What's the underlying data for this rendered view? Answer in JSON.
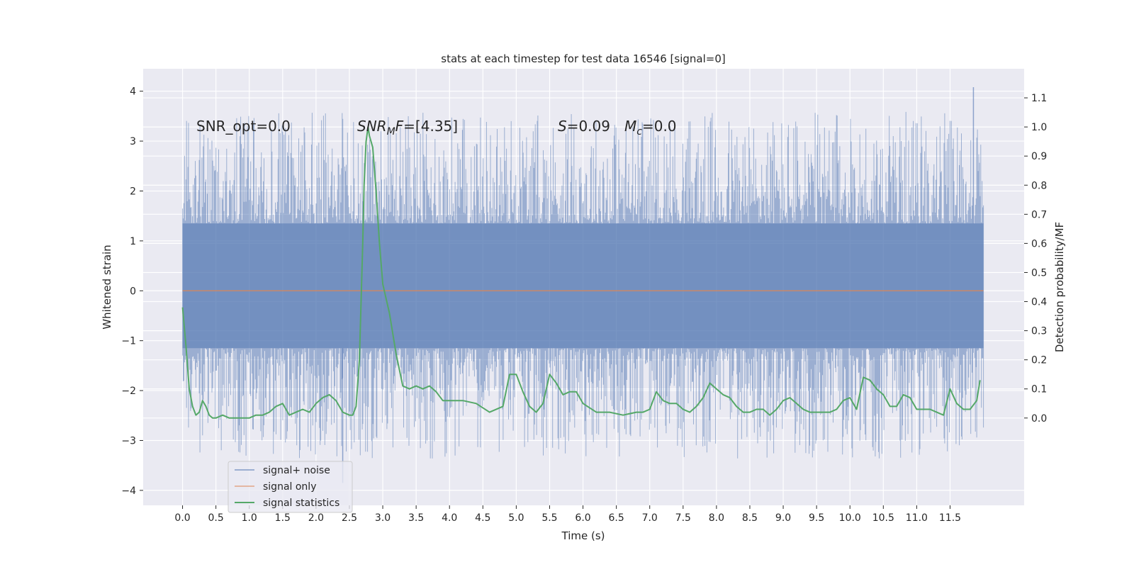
{
  "chart_data": {
    "type": "line",
    "title": "stats at each timestep for test data 16546 [signal=0]",
    "xlabel": "Time (s)",
    "ylabel": "Whitened strain",
    "ylabel_right": "Detection probability/MF",
    "x_ticks": [
      "0.0",
      "0.5",
      "1.0",
      "1.5",
      "2.0",
      "2.5",
      "3.0",
      "3.5",
      "4.0",
      "4.5",
      "5.0",
      "5.5",
      "6.0",
      "6.5",
      "7.0",
      "7.5",
      "8.0",
      "8.5",
      "9.0",
      "9.5",
      "10.0",
      "10.5",
      "11.0",
      "11.5"
    ],
    "y_ticks": [
      "4",
      "3",
      "2",
      "1",
      "0",
      "−1",
      "−2",
      "−3",
      "−4"
    ],
    "y_ticks_right": [
      "1.1",
      "1.0",
      "0.9",
      "0.8",
      "0.7",
      "0.6",
      "0.5",
      "0.4",
      "0.3",
      "0.2",
      "0.1",
      "0.0"
    ],
    "xlim": [
      -0.59,
      12.61
    ],
    "ylim": [
      -4.3,
      4.45
    ],
    "ylim_right": [
      -0.3,
      1.2
    ],
    "grid": true,
    "legend_position": "lower-left",
    "annotations": {
      "snr_opt": "SNR_opt=0.0",
      "snr_mf_pre": "SNR",
      "snr_mf_sub": "M",
      "snr_mf_post": "F=[4.35]",
      "s_var": "S",
      "s_val": "=0.09",
      "mc_var": "M",
      "mc_sub": "c",
      "mc_val": "=0.0"
    },
    "series": [
      {
        "name": "signal+ noise",
        "color": "#4c72b0",
        "axis": "left",
        "kind": "noise",
        "x_range": [
          0.0,
          12.0
        ],
        "band": [
          -1.15,
          1.35
        ],
        "extremes": {
          "max": 4.08,
          "min": -3.85
        }
      },
      {
        "name": "signal only",
        "color": "#dd8452",
        "axis": "left",
        "kind": "flat",
        "x_range": [
          0.0,
          12.0
        ],
        "value": 0.0
      },
      {
        "name": "signal statistics",
        "color": "#55a868",
        "axis": "right",
        "kind": "line",
        "x": [
          0.0,
          0.05,
          0.1,
          0.15,
          0.2,
          0.25,
          0.3,
          0.35,
          0.4,
          0.45,
          0.5,
          0.6,
          0.7,
          0.8,
          0.9,
          1.0,
          1.1,
          1.2,
          1.3,
          1.4,
          1.5,
          1.6,
          1.7,
          1.8,
          1.9,
          2.0,
          2.1,
          2.2,
          2.3,
          2.4,
          2.5,
          2.55,
          2.6,
          2.65,
          2.7,
          2.72,
          2.75,
          2.78,
          2.8,
          2.85,
          2.9,
          2.95,
          3.0,
          3.1,
          3.2,
          3.3,
          3.4,
          3.5,
          3.6,
          3.7,
          3.8,
          3.9,
          4.0,
          4.2,
          4.4,
          4.6,
          4.8,
          4.9,
          5.0,
          5.1,
          5.2,
          5.3,
          5.4,
          5.5,
          5.6,
          5.7,
          5.8,
          5.9,
          6.0,
          6.2,
          6.4,
          6.6,
          6.8,
          6.9,
          7.0,
          7.1,
          7.2,
          7.3,
          7.4,
          7.5,
          7.6,
          7.7,
          7.8,
          7.9,
          8.0,
          8.1,
          8.2,
          8.3,
          8.4,
          8.5,
          8.6,
          8.7,
          8.8,
          8.9,
          9.0,
          9.1,
          9.2,
          9.3,
          9.4,
          9.5,
          9.6,
          9.7,
          9.8,
          9.9,
          10.0,
          10.1,
          10.2,
          10.3,
          10.4,
          10.5,
          10.6,
          10.7,
          10.8,
          10.9,
          11.0,
          11.1,
          11.2,
          11.3,
          11.4,
          11.5,
          11.6,
          11.7,
          11.8,
          11.9,
          11.95
        ],
        "y": [
          0.38,
          0.25,
          0.1,
          0.04,
          0.01,
          0.02,
          0.06,
          0.04,
          0.01,
          0.0,
          0.0,
          0.01,
          0.0,
          0.0,
          0.0,
          0.0,
          0.01,
          0.01,
          0.02,
          0.04,
          0.05,
          0.01,
          0.02,
          0.03,
          0.02,
          0.05,
          0.07,
          0.08,
          0.06,
          0.02,
          0.01,
          0.01,
          0.04,
          0.2,
          0.6,
          0.8,
          0.95,
          1.0,
          0.97,
          0.93,
          0.78,
          0.6,
          0.46,
          0.36,
          0.22,
          0.11,
          0.1,
          0.11,
          0.1,
          0.11,
          0.09,
          0.06,
          0.06,
          0.06,
          0.05,
          0.02,
          0.04,
          0.15,
          0.15,
          0.09,
          0.04,
          0.02,
          0.05,
          0.15,
          0.12,
          0.08,
          0.09,
          0.09,
          0.05,
          0.02,
          0.02,
          0.01,
          0.02,
          0.02,
          0.03,
          0.09,
          0.06,
          0.05,
          0.05,
          0.03,
          0.02,
          0.04,
          0.07,
          0.12,
          0.1,
          0.08,
          0.07,
          0.04,
          0.02,
          0.02,
          0.03,
          0.03,
          0.01,
          0.03,
          0.06,
          0.07,
          0.05,
          0.03,
          0.02,
          0.02,
          0.02,
          0.02,
          0.03,
          0.06,
          0.07,
          0.03,
          0.14,
          0.13,
          0.1,
          0.08,
          0.04,
          0.04,
          0.08,
          0.07,
          0.03,
          0.03,
          0.03,
          0.02,
          0.01,
          0.1,
          0.05,
          0.03,
          0.03,
          0.06,
          0.13
        ]
      }
    ]
  }
}
